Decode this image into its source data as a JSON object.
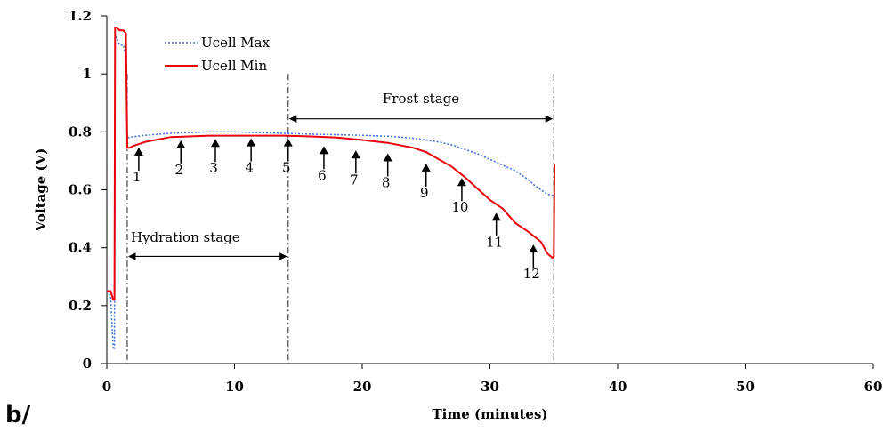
{
  "panel_label": "b/",
  "chart_data": {
    "type": "line",
    "xlabel": "Time (minutes)",
    "ylabel": "Voltage (V)",
    "xlim": [
      0,
      60
    ],
    "ylim": [
      0,
      1.2
    ],
    "x_ticks": [
      0,
      10,
      20,
      30,
      40,
      50,
      60
    ],
    "x_tick_labels": [
      "0",
      "10",
      "20",
      "30",
      "40",
      "50",
      "60"
    ],
    "y_ticks": [
      0,
      0.2,
      0.4,
      0.6,
      0.8,
      1,
      1.2
    ],
    "y_tick_labels": [
      "0",
      "0.2",
      "0.4",
      "0.6",
      "0.8",
      "1",
      "1.2"
    ],
    "grid": false,
    "legend_position": "top-left",
    "series": [
      {
        "name": "Ucell  Max",
        "color": "#3a6fd8",
        "style": "dotted",
        "x": [
          0,
          0.3,
          0.5,
          0.6,
          0.65,
          0.7,
          0.8,
          1.0,
          1.3,
          1.5,
          1.6,
          1.8,
          2,
          3,
          5,
          8,
          10,
          12,
          14,
          16,
          18,
          20,
          22,
          24,
          26,
          27,
          28,
          29,
          30,
          31,
          32,
          33,
          33.5,
          34,
          34.5,
          34.9,
          35.0
        ],
        "y": [
          0.25,
          0.23,
          0.05,
          0.05,
          1.12,
          1.13,
          1.12,
          1.1,
          1.1,
          1.06,
          0.78,
          0.78,
          0.783,
          0.788,
          0.795,
          0.8,
          0.8,
          0.797,
          0.795,
          0.792,
          0.79,
          0.788,
          0.785,
          0.778,
          0.765,
          0.755,
          0.74,
          0.725,
          0.705,
          0.685,
          0.665,
          0.635,
          0.615,
          0.6,
          0.585,
          0.58,
          0.58
        ]
      },
      {
        "name": "Ucell Min",
        "color": "#e8000b",
        "style": "solid",
        "x": [
          0,
          0.3,
          0.5,
          0.6,
          0.65,
          0.7,
          0.8,
          1.0,
          1.3,
          1.5,
          1.6,
          1.8,
          2,
          3,
          5,
          8,
          10,
          12,
          14,
          16,
          18,
          20,
          22,
          24,
          25,
          26,
          27,
          28,
          29,
          30,
          31,
          32,
          33,
          34,
          34.5,
          34.9,
          35.0,
          35.05
        ],
        "y": [
          0.25,
          0.25,
          0.22,
          0.22,
          1.16,
          1.16,
          1.16,
          1.15,
          1.15,
          1.14,
          0.745,
          0.745,
          0.75,
          0.765,
          0.782,
          0.787,
          0.787,
          0.787,
          0.787,
          0.784,
          0.78,
          0.772,
          0.762,
          0.745,
          0.73,
          0.705,
          0.68,
          0.645,
          0.605,
          0.565,
          0.535,
          0.485,
          0.455,
          0.42,
          0.38,
          0.365,
          0.37,
          0.69
        ]
      }
    ],
    "stage_lines": [
      1.6,
      14.2,
      35.0
    ],
    "annotations": [
      {
        "text": "Hydration stage",
        "from": 1.6,
        "to": 14.2,
        "y": 0.37,
        "label_y": 0.42
      },
      {
        "text": "Frost stage",
        "from": 14.2,
        "to": 35.0,
        "y": 0.845,
        "label_y": 0.9
      }
    ],
    "arrows": [
      {
        "label": "1",
        "x": 2.5,
        "tip_y": 0.755
      },
      {
        "label": "2",
        "x": 5.8,
        "tip_y": 0.78
      },
      {
        "label": "3",
        "x": 8.5,
        "tip_y": 0.785
      },
      {
        "label": "4",
        "x": 11.3,
        "tip_y": 0.787
      },
      {
        "label": "5",
        "x": 14.2,
        "tip_y": 0.787
      },
      {
        "label": "6",
        "x": 17.0,
        "tip_y": 0.76
      },
      {
        "label": "7",
        "x": 19.5,
        "tip_y": 0.745
      },
      {
        "label": "8",
        "x": 22.0,
        "tip_y": 0.735
      },
      {
        "label": "9",
        "x": 25.0,
        "tip_y": 0.7
      },
      {
        "label": "10",
        "x": 27.8,
        "tip_y": 0.65
      },
      {
        "label": "11",
        "x": 30.5,
        "tip_y": 0.53
      },
      {
        "label": "12",
        "x": 33.4,
        "tip_y": 0.42
      }
    ]
  }
}
